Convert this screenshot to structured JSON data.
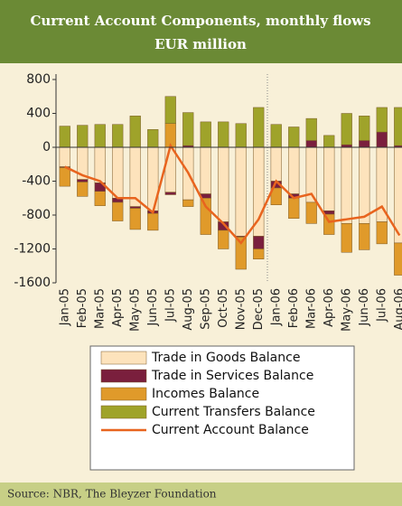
{
  "chart_data": {
    "type": "bar",
    "title": "Current Account Components, monthly flows",
    "subtitle": "EUR million",
    "source": "Source: NBR, The Bleyzer Foundation",
    "categories": [
      "Jan-05",
      "Feb-05",
      "Mar-05",
      "Apr-05",
      "May-05",
      "Jun-05",
      "Jul-05",
      "Aug-05",
      "Sep-05",
      "Oct-05",
      "Nov-05",
      "Dec-05",
      "Jan-06",
      "Feb-06",
      "Mar-06",
      "Apr-06",
      "May-06",
      "Jun-06",
      "Jul-06",
      "Aug-06"
    ],
    "series": [
      {
        "name": "Trade in Goods Balance",
        "type": "bar",
        "color": "#fde3bc",
        "values": [
          -230,
          -380,
          -420,
          -600,
          -700,
          -750,
          -530,
          -620,
          -550,
          -880,
          -1050,
          -1050,
          -400,
          -550,
          -650,
          -750,
          -900,
          -900,
          -880,
          -1130
        ]
      },
      {
        "name": "Trade in Services Balance",
        "type": "bar",
        "color": "#7a1f3d",
        "values": [
          -10,
          -30,
          -100,
          -50,
          -20,
          -30,
          -30,
          20,
          -50,
          -100,
          -10,
          -150,
          -80,
          -50,
          80,
          -40,
          30,
          80,
          180,
          20
        ]
      },
      {
        "name": "Incomes Balance",
        "type": "bar",
        "color": "#e09a2a",
        "values": [
          -220,
          -170,
          -170,
          -220,
          -250,
          -200,
          280,
          -80,
          -430,
          -220,
          -380,
          -120,
          -200,
          -240,
          -250,
          -240,
          -340,
          -310,
          -260,
          -380
        ]
      },
      {
        "name": "Current Transfers Balance",
        "type": "bar",
        "color": "#9fa32a",
        "values": [
          250,
          260,
          270,
          270,
          370,
          210,
          320,
          390,
          300,
          300,
          280,
          470,
          270,
          240,
          260,
          140,
          370,
          290,
          290,
          450
        ]
      },
      {
        "name": "Current Account Balance",
        "type": "line",
        "color": "#e8641e",
        "values": [
          -230,
          -330,
          -400,
          -600,
          -600,
          -770,
          20,
          -300,
          -700,
          -900,
          -1130,
          -850,
          -400,
          -600,
          -550,
          -880,
          -850,
          -820,
          -700,
          -1040
        ]
      }
    ],
    "ylim": [
      -1600,
      800
    ],
    "yticks": [
      -1600,
      -1200,
      -800,
      -400,
      0,
      400,
      800
    ]
  }
}
